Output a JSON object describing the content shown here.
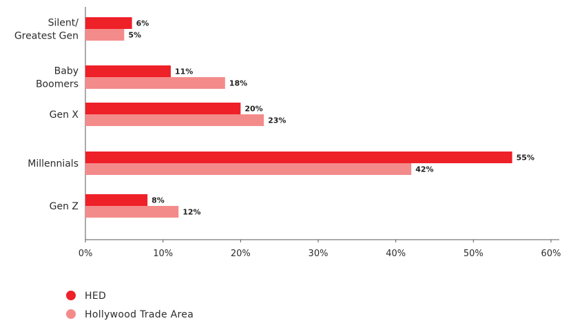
{
  "chart_data": {
    "type": "bar",
    "orientation": "horizontal",
    "categories": [
      [
        "Silent/",
        "Greatest Gen"
      ],
      [
        "Baby",
        "Boomers"
      ],
      [
        "Gen X"
      ],
      [
        "Millennials"
      ],
      [
        "Gen Z"
      ]
    ],
    "series": [
      {
        "name": "HED",
        "color": "#ee2028",
        "values": [
          6,
          11,
          20,
          55,
          8
        ],
        "labels": [
          "6%",
          "11%",
          "20%",
          "55%",
          "8%"
        ]
      },
      {
        "name": "Hollywood Trade Area",
        "color": "#f48b8b",
        "values": [
          5,
          18,
          23,
          42,
          12
        ],
        "labels": [
          "5%",
          "18%",
          "23%",
          "42%",
          "12%"
        ]
      }
    ],
    "xlim": [
      0,
      60
    ],
    "xticks": [
      0,
      10,
      20,
      30,
      40,
      50,
      60
    ],
    "xtick_labels": [
      "0%",
      "10%",
      "20%",
      "30%",
      "40%",
      "50%",
      "60%"
    ],
    "grid": false,
    "legend_position": "bottom-left"
  }
}
